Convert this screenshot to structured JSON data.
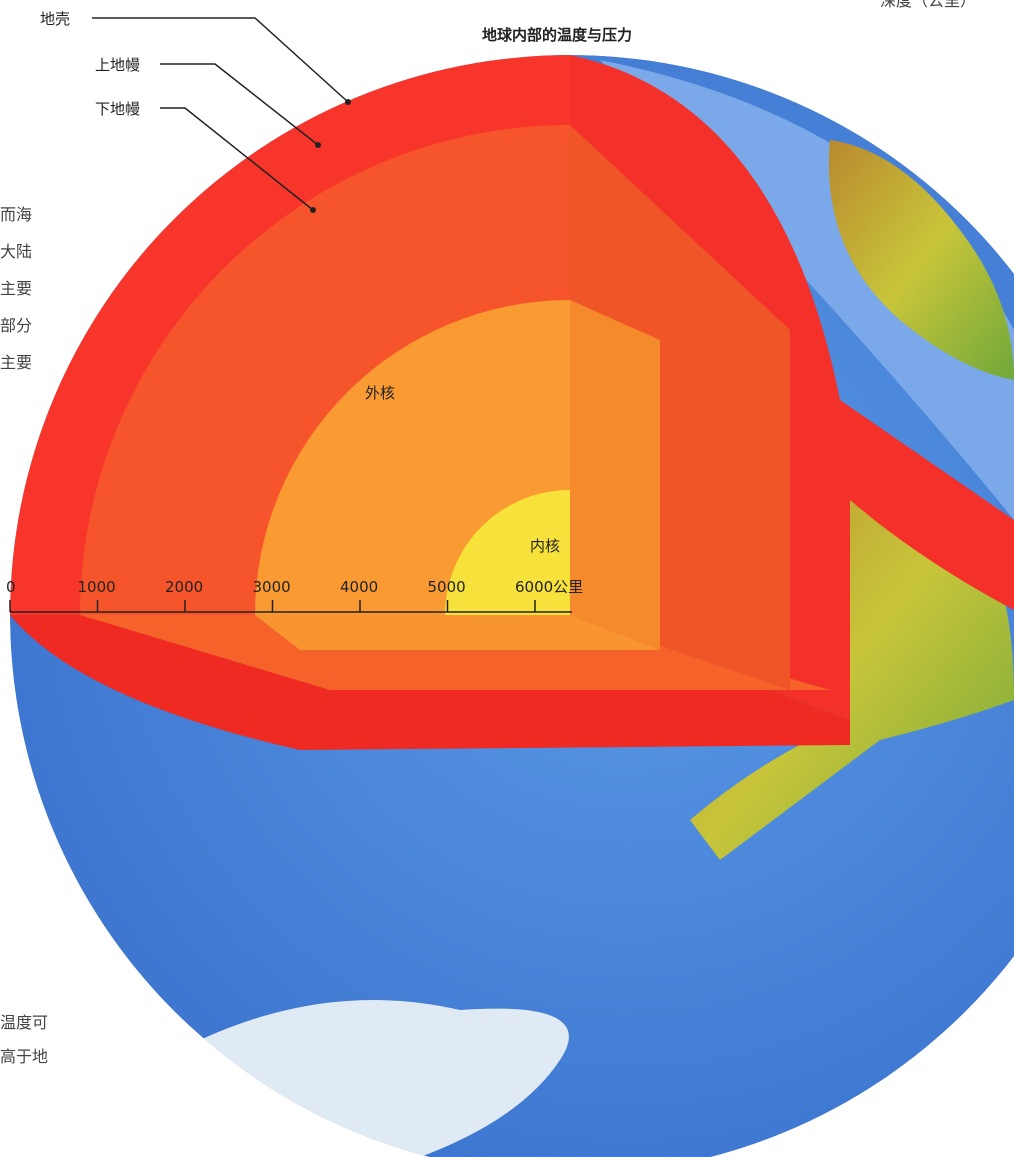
{
  "header": {
    "title": "地球内部的温度与压力",
    "corner": "深度（公里）"
  },
  "labels": {
    "crust": "地壳",
    "upper_mantle": "上地幔",
    "lower_mantle": "下地幔",
    "outer_core": "外核",
    "inner_core": "内核"
  },
  "scale": {
    "ticks": [
      "0",
      "1000",
      "2000",
      "3000",
      "4000",
      "5000",
      "6000公里"
    ]
  },
  "side_text": [
    "而海",
    "大陆",
    "主要",
    "部分",
    "主要"
  ],
  "bottom_text": [
    "温度可",
    "高于地"
  ]
}
